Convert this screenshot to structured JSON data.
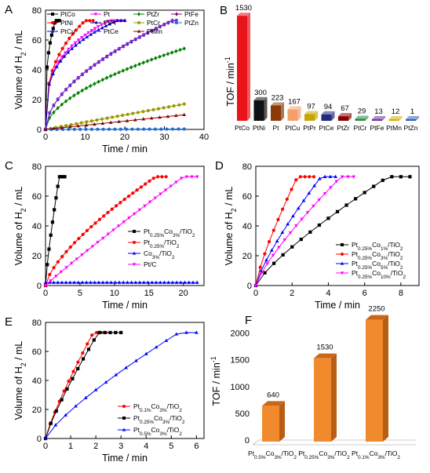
{
  "chart_data": [
    {
      "panel": "A",
      "type": "line",
      "xlabel": "Time / min",
      "ylabel": "Volume of H2 / mL",
      "xlim": [
        0,
        40
      ],
      "ylim": [
        0,
        80
      ],
      "xticks": [
        0,
        10,
        20,
        30,
        40
      ],
      "yticks": [
        0,
        20,
        40,
        60,
        80
      ],
      "legend_position": "top",
      "series": [
        {
          "name": "PtCo",
          "color": "#000000",
          "marker": "square",
          "end": 2.5,
          "plateau": 3.5,
          "shape": 0.3,
          "npts": 10
        },
        {
          "name": "Pt",
          "color": "#ff00ff",
          "marker": "triangle-down",
          "end": 16,
          "plateau": 20,
          "shape": 0.3,
          "npts": 25
        },
        {
          "name": "PtZr",
          "color": "#008000",
          "marker": "diamond",
          "end": 60,
          "plateau": 35,
          "shape": 0.55,
          "npts": 35
        },
        {
          "name": "PtFe",
          "color": "#800080",
          "marker": "diamond",
          "end": 32,
          "plateau": 33,
          "shape": 0.55,
          "npts": 33
        },
        {
          "name": "PtNi",
          "color": "#ff0000",
          "marker": "circle",
          "end": 10,
          "plateau": 12,
          "shape": 0.35,
          "npts": 15
        },
        {
          "name": "PtPr",
          "color": "#000080",
          "marker": "triangle-left",
          "end": 32,
          "plateau": 33,
          "shape": 0.55,
          "npts": 33
        },
        {
          "name": "PtCr",
          "color": "#9a9a00",
          "marker": "circle",
          "end": 150,
          "plateau": 35,
          "shape": 1,
          "npts": 28
        },
        {
          "name": "PtZn",
          "color": "#1f6fd0",
          "marker": "circle",
          "end": 9999,
          "plateau": 35,
          "shape": 1,
          "npts": 25
        },
        {
          "name": "PtCu",
          "color": "#0000cc",
          "marker": "triangle",
          "end": 18,
          "plateau": 20,
          "shape": 0.3,
          "npts": 22
        },
        {
          "name": "PtCe",
          "color": "#8a2be2",
          "marker": "triangle-right",
          "end": 32,
          "plateau": 33,
          "shape": 0.55,
          "npts": 33
        },
        {
          "name": "PtMn",
          "color": "#8b0000",
          "marker": "triangle",
          "end": 260,
          "plateau": 35,
          "shape": 1,
          "npts": 18
        }
      ]
    },
    {
      "panel": "B",
      "type": "bar",
      "ylabel": "TOF / min⁻¹",
      "categories": [
        "PtCo",
        "PtNi",
        "Pt",
        "PtCu",
        "PtPr",
        "PtCe",
        "PtZr",
        "PtCr",
        "PtFe",
        "PtMn",
        "PtZn"
      ],
      "values": [
        1530,
        300,
        223,
        167,
        97,
        94,
        67,
        29,
        13,
        12,
        1
      ],
      "value_labels": [
        "1530",
        "300",
        "223",
        "167",
        "97",
        "94",
        "67",
        "29",
        "13",
        "12",
        "1"
      ],
      "colors": [
        "#e8141a",
        "#111111",
        "#8b3a0a",
        "#f5a06a",
        "#c9a400",
        "#1f2a80",
        "#8b0000",
        "#2e8b3e",
        "#7030a0",
        "#d4b000",
        "#3060c0"
      ],
      "ylim": [
        0,
        1600
      ],
      "yticks": []
    },
    {
      "panel": "C",
      "type": "line",
      "xlabel": "Time / min",
      "ylabel": "Volume of H2 / mL",
      "xlim": [
        0,
        23
      ],
      "ylim": [
        0,
        80
      ],
      "xticks": [
        0,
        5,
        10,
        15,
        20
      ],
      "yticks": [
        0,
        20,
        40,
        60,
        80
      ],
      "legend_position": "bottom-right",
      "series": [
        {
          "name": "Pt0.25%Co3%/TiO2",
          "label_main": [
            "Pt",
            "Co",
            "/TiO"
          ],
          "label_sub": [
            "0.25%",
            "3%",
            "2"
          ],
          "color": "#000000",
          "marker": "square",
          "end": 2.0,
          "plateau": 2.8,
          "shape": 0.8,
          "npts": 12
        },
        {
          "name": "Pt0.25%/TiO2",
          "label_main": [
            "Pt",
            "/TiO"
          ],
          "label_sub": [
            "0.25%",
            "2"
          ],
          "color": "#ff0000",
          "marker": "circle",
          "end": 16,
          "plateau": 17.5,
          "shape": 0.7,
          "npts": 30
        },
        {
          "name": "Co3%/TiO2",
          "label_main": [
            "Co",
            "/TiO"
          ],
          "label_sub": [
            "3%",
            "2"
          ],
          "color": "#0000ff",
          "marker": "triangle",
          "end": 9999,
          "plateau": 22,
          "shape": 1,
          "npts": 38,
          "const": 2
        },
        {
          "name": "Pt/C",
          "label_main": [
            "Pt/C"
          ],
          "label_sub": [
            ""
          ],
          "color": "#ff00ff",
          "marker": "triangle-down",
          "end": 20,
          "plateau": 22,
          "shape": 0.95,
          "npts": 30
        }
      ]
    },
    {
      "panel": "D",
      "type": "line",
      "xlabel": "Time / min",
      "ylabel": "Volume of H2 / mL",
      "xlim": [
        0,
        9
      ],
      "ylim": [
        0,
        80
      ],
      "xticks": [
        0,
        2,
        4,
        6,
        8
      ],
      "yticks": [
        0,
        20,
        40,
        60,
        80
      ],
      "legend_position": "bottom-right",
      "series": [
        {
          "name": "Pt0.25%Co1%/TiO2",
          "label_main": [
            "Pt",
            "Co",
            "/TiO"
          ],
          "label_sub": [
            "0.25%",
            "1%",
            "2"
          ],
          "color": "#000000",
          "marker": "square",
          "end": 7.3,
          "plateau": 8.5,
          "shape": 0.8,
          "npts": 18
        },
        {
          "name": "Pt0.25%Co3%/TiO2",
          "label_main": [
            "Pt",
            "Co",
            "/TiO"
          ],
          "label_sub": [
            "0.25%",
            "3%",
            "2"
          ],
          "color": "#ff0000",
          "marker": "circle",
          "end": 2.3,
          "plateau": 3.2,
          "shape": 0.8,
          "npts": 14
        },
        {
          "name": "Pt0.25%Co5%/TiO2",
          "label_main": [
            "Pt",
            "Co",
            "/TiO"
          ],
          "label_sub": [
            "0.25%",
            "5%",
            "2"
          ],
          "color": "#0000ff",
          "marker": "triangle",
          "end": 3.6,
          "plateau": 4.4,
          "shape": 0.8,
          "npts": 16
        },
        {
          "name": "Pt0.25%Co10%/TiO2",
          "label_main": [
            "Pt",
            "Co",
            "/TiO"
          ],
          "label_sub": [
            "0.25%",
            "10%",
            "2"
          ],
          "color": "#ff00ff",
          "marker": "triangle-down",
          "end": 4.7,
          "plateau": 5.4,
          "shape": 0.8,
          "npts": 18
        }
      ]
    },
    {
      "panel": "E",
      "type": "line",
      "xlabel": "Time / min",
      "ylabel": "Volume of H2 / mL",
      "xlim": [
        0,
        6.3
      ],
      "ylim": [
        0,
        80
      ],
      "xticks": [
        0,
        1,
        2,
        3,
        4,
        5,
        6
      ],
      "yticks": [
        0,
        20,
        40,
        60,
        80
      ],
      "legend_position": "bottom-right",
      "series": [
        {
          "name": "Pt0.1%Co3%/TiO2",
          "label_main": [
            "Pt",
            "Co",
            "/TiO"
          ],
          "label_sub": [
            "0.1%",
            "3%",
            "2"
          ],
          "color": "#ff0000",
          "marker": "circle",
          "end": 1.9,
          "plateau": 2.4,
          "shape": 0.85,
          "npts": 14
        },
        {
          "name": "Pt0.25%Co3%/TiO2",
          "label_main": [
            "Pt",
            "Co",
            "/TiO"
          ],
          "label_sub": [
            "0.25%",
            "3%",
            "2"
          ],
          "color": "#000000",
          "marker": "square",
          "end": 2.1,
          "plateau": 3.0,
          "shape": 0.85,
          "npts": 15
        },
        {
          "name": "Pt0.5%Co3%/TiO2",
          "label_main": [
            "Pt",
            "Co",
            "/TiO"
          ],
          "label_sub": [
            "0.5%",
            "3%",
            "2"
          ],
          "color": "#0000ff",
          "marker": "triangle",
          "end": 5.3,
          "plateau": 6.0,
          "shape": 0.8,
          "npts": 16
        }
      ]
    },
    {
      "panel": "F",
      "type": "bar",
      "ylabel": "TOF / min⁻¹",
      "categories": [
        "Pt0.5%Co3%/TiO2",
        "Pt0.25%Co3%/TiO2",
        "Pt0.1%Co3%/TiO2"
      ],
      "category_main": [
        [
          "Pt",
          "Co",
          "/TiO"
        ],
        [
          "Pt",
          "Co",
          "/TiO"
        ],
        [
          "Pt",
          "Co",
          "/TiO"
        ]
      ],
      "category_sub": [
        [
          "0.5%",
          "3%",
          "2"
        ],
        [
          "0.25%",
          "3%",
          "2"
        ],
        [
          "0.1%",
          "3%",
          "2"
        ]
      ],
      "values": [
        640,
        1530,
        2250
      ],
      "value_labels": [
        "640",
        "1530",
        "2250"
      ],
      "color": "#f08a2c",
      "ylim": [
        0,
        2200
      ],
      "yticks": [
        0,
        500,
        1000,
        1500,
        2000
      ]
    }
  ],
  "panel_letters": [
    "A",
    "B",
    "C",
    "D",
    "E",
    "F"
  ],
  "axis_titles": {
    "time": "Time / min",
    "volume_main": "Volume of H",
    "volume_sub": "2",
    "volume_rest": " / mL",
    "tof_main": "TOF / min",
    "tof_sup": "-1"
  }
}
